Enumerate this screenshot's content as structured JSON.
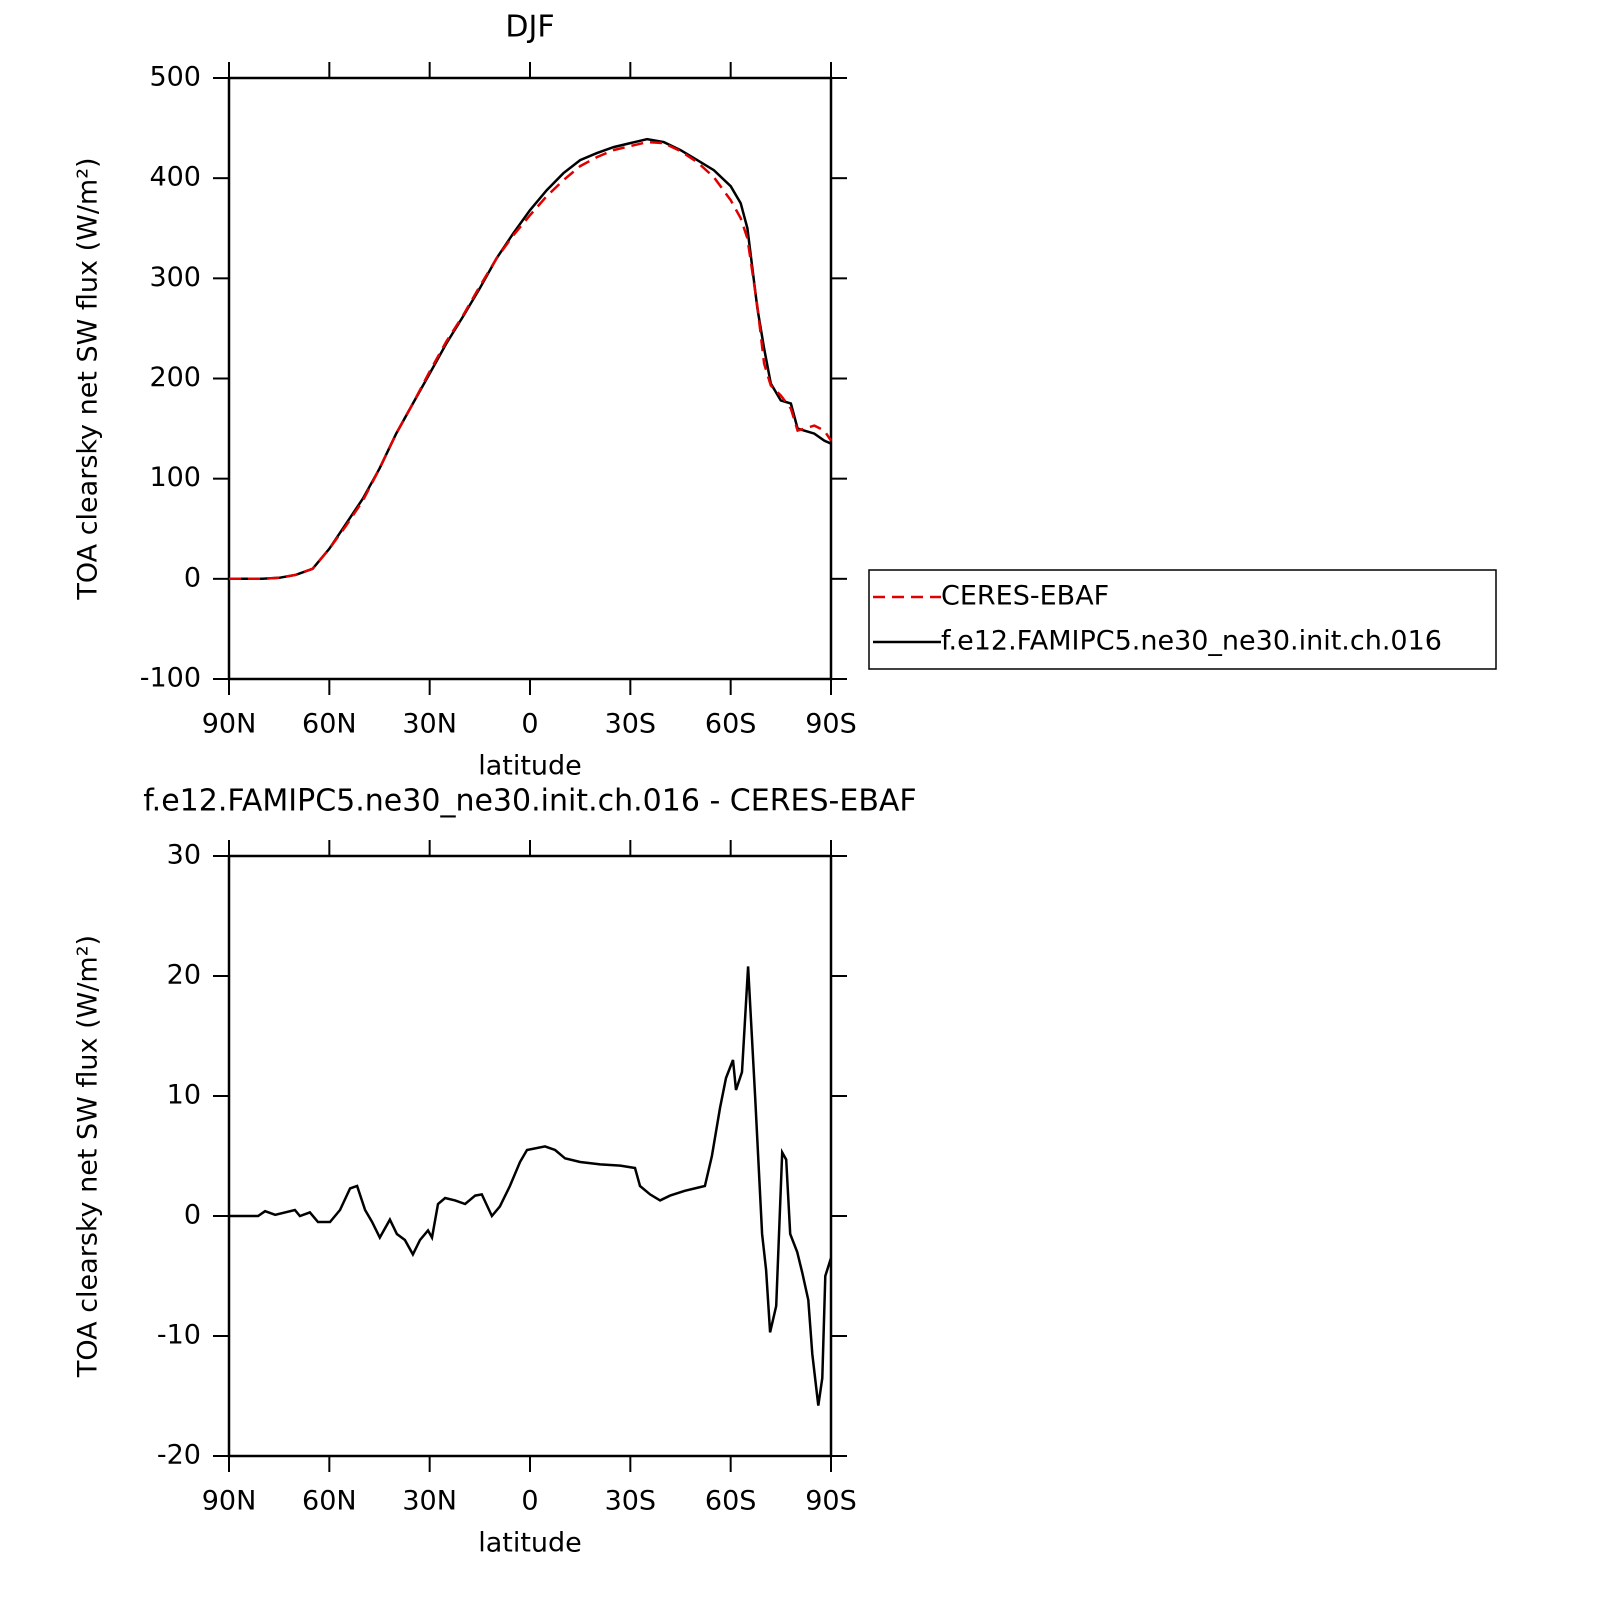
{
  "chart_data": [
    {
      "type": "line",
      "title": "DJF",
      "xlabel": "latitude",
      "ylabel": "TOA clearsky net SW flux (W/m²)",
      "x": [
        90,
        85,
        80,
        75,
        70,
        65,
        60,
        55,
        50,
        45,
        40,
        35,
        30,
        25,
        20,
        15,
        10,
        5,
        0,
        -5,
        -10,
        -15,
        -20,
        -25,
        -30,
        -35,
        -40,
        -45,
        -50,
        -55,
        -60,
        -63,
        -65,
        -68,
        -70,
        -72,
        -75,
        -78,
        -80,
        -85,
        -88,
        -90
      ],
      "series": [
        {
          "name": "CERES-EBAF",
          "color": "#e00000",
          "linestyle": "dashed",
          "values": [
            0,
            0,
            0,
            1,
            4,
            10,
            30,
            53,
            78,
            110,
            145,
            175,
            207,
            237,
            263,
            292,
            320,
            343,
            363,
            382,
            398,
            412,
            421,
            428,
            432,
            436,
            435,
            427,
            416,
            401,
            378,
            360,
            340,
            272,
            215,
            193,
            183,
            170,
            148,
            153,
            148,
            138
          ]
        },
        {
          "name": "f.e12.FAMIPC5.ne30_ne30.init.ch.016",
          "color": "#000000",
          "linestyle": "solid",
          "values": [
            0,
            0,
            0,
            1,
            4,
            10,
            30,
            55,
            80,
            110,
            145,
            175,
            205,
            235,
            262,
            290,
            320,
            345,
            368,
            388,
            405,
            418,
            425,
            431,
            435,
            439,
            436,
            428,
            418,
            408,
            392,
            375,
            350,
            270,
            230,
            195,
            178,
            175,
            150,
            145,
            138,
            135
          ]
        }
      ],
      "xlim": [
        90,
        -90
      ],
      "xticks": [
        {
          "value": 90,
          "label": "90N"
        },
        {
          "value": 60,
          "label": "60N"
        },
        {
          "value": 30,
          "label": "30N"
        },
        0,
        {
          "value": -30,
          "label": "30S"
        },
        {
          "value": -60,
          "label": "60S"
        },
        {
          "value": -90,
          "label": "90S"
        }
      ],
      "ylim": [
        -100,
        500
      ],
      "yticks": [
        -100,
        0,
        100,
        200,
        300,
        400,
        500
      ],
      "legend": "right"
    },
    {
      "type": "line",
      "title": "f.e12.FAMIPC5.ne30_ne30.init.ch.016 - CERES-EBAF",
      "xlabel": "latitude",
      "ylabel": "TOA clearsky net SW flux (W/m²)",
      "x": [
        90,
        81.3,
        79.2,
        76.2,
        70.3,
        68.8,
        65.8,
        63.4,
        59.8,
        56.8,
        53.8,
        51.7,
        49.3,
        47.2,
        44.9,
        41.9,
        39.8,
        37.4,
        35.0,
        32.9,
        30.5,
        29.3,
        27.5,
        25.4,
        22.4,
        19.4,
        16.4,
        14.4,
        11.4,
        9.0,
        6.0,
        3.0,
        0.9,
        -4.5,
        -7.5,
        -10.5,
        -15.0,
        -21.0,
        -27.0,
        -31.4,
        -32.9,
        -35.9,
        -38.9,
        -41.9,
        -46.3,
        -49.3,
        -52.3,
        -54.4,
        -56.8,
        -58.6,
        -60.7,
        -61.6,
        -63.4,
        -65.2,
        -67.3,
        -69.4,
        -70.6,
        -71.8,
        -73.6,
        -75.4,
        -76.6,
        -77.8,
        -79.9,
        -81.4,
        -83.2,
        -84.4,
        -86.2,
        -87.4,
        -88.3,
        -90
      ],
      "values": [
        0,
        0,
        0.4,
        0.1,
        0.5,
        0,
        0.3,
        -0.5,
        -0.5,
        0.5,
        2.3,
        2.5,
        0.5,
        -0.5,
        -1.8,
        -0.3,
        -1.5,
        -2,
        -3.2,
        -2,
        -1.2,
        -1.8,
        1,
        1.5,
        1.3,
        1,
        1.7,
        1.8,
        0,
        0.8,
        2.5,
        4.5,
        5.5,
        5.8,
        5.5,
        4.8,
        4.5,
        4.3,
        4.2,
        4,
        2.5,
        1.8,
        1.3,
        1.7,
        2.1,
        2.3,
        2.5,
        5,
        9,
        11.5,
        13,
        10.5,
        12,
        20.8,
        10,
        -1.5,
        -4.5,
        -9.7,
        -7.5,
        5.3,
        4.7,
        -1.5,
        -3,
        -4.7,
        -7,
        -11.5,
        -15.8,
        -13.5,
        -5,
        -3.5
      ],
      "color": "#000000",
      "xlim": [
        90,
        -90
      ],
      "xticks": [
        {
          "value": 90,
          "label": "90N"
        },
        {
          "value": 60,
          "label": "60N"
        },
        {
          "value": 30,
          "label": "30N"
        },
        0,
        {
          "value": -30,
          "label": "30S"
        },
        {
          "value": -60,
          "label": "60S"
        },
        {
          "value": -90,
          "label": "90S"
        }
      ],
      "ylim": [
        -20,
        30
      ],
      "yticks": [
        -20,
        -10,
        0,
        10,
        20,
        30
      ]
    }
  ]
}
